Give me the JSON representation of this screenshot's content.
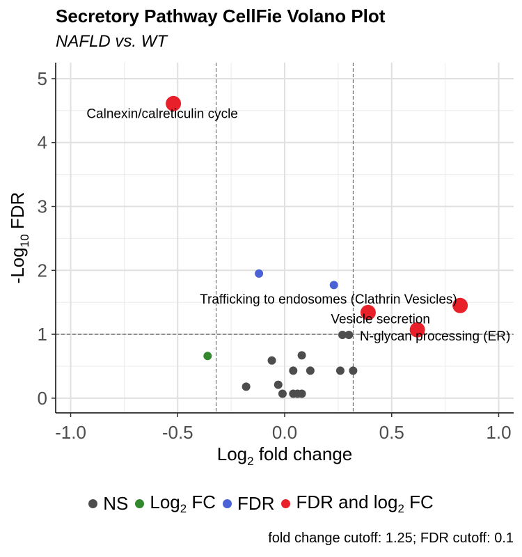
{
  "chart_data": {
    "type": "scatter",
    "title": "Secretory Pathway CellFie Volano Plot",
    "subtitle": "NAFLD vs. WT",
    "xlabel": "Log₂ fold change",
    "ylabel": "-Log₁₀ FDR",
    "xlim": [
      -1.07,
      1.07
    ],
    "ylim": [
      -0.23,
      5.25
    ],
    "x_ticks": [
      -1.0,
      -0.5,
      0.0,
      0.5,
      1.0
    ],
    "x_tick_labels": [
      "-1.0",
      "-0.5",
      "0.0",
      "0.5",
      "1.0"
    ],
    "y_ticks": [
      0,
      1,
      2,
      3,
      4,
      5
    ],
    "y_tick_labels": [
      "0",
      "1",
      "2",
      "3",
      "4",
      "5"
    ],
    "grid": true,
    "legend_position": "bottom",
    "fc_cutoff_lines": [
      -0.32,
      0.32
    ],
    "fdr_cutoff_line": 1.0,
    "caption": "fold change cutoff: 1.25; FDR cutoff: 0.1",
    "series": [
      {
        "name": "NS",
        "color": "#4d4d4d",
        "points": [
          {
            "x": -0.18,
            "y": 0.18
          },
          {
            "x": -0.06,
            "y": 0.59
          },
          {
            "x": -0.03,
            "y": 0.21
          },
          {
            "x": -0.01,
            "y": 0.07
          },
          {
            "x": 0.04,
            "y": 0.07
          },
          {
            "x": 0.06,
            "y": 0.07
          },
          {
            "x": 0.08,
            "y": 0.07
          },
          {
            "x": 0.04,
            "y": 0.43
          },
          {
            "x": 0.08,
            "y": 0.67
          },
          {
            "x": 0.12,
            "y": 0.43
          },
          {
            "x": 0.26,
            "y": 0.43
          },
          {
            "x": 0.27,
            "y": 0.99
          },
          {
            "x": 0.3,
            "y": 0.99
          },
          {
            "x": 0.32,
            "y": 0.43
          }
        ]
      },
      {
        "name": "Log₂ FC",
        "color": "#33882e",
        "points": [
          {
            "x": -0.36,
            "y": 0.66
          }
        ]
      },
      {
        "name": "FDR",
        "color": "#4a62d6",
        "points": [
          {
            "x": -0.12,
            "y": 1.95
          },
          {
            "x": 0.23,
            "y": 1.77
          }
        ]
      },
      {
        "name": "FDR and log₂ FC",
        "color": "#e8202a",
        "points": [
          {
            "x": -0.52,
            "y": 4.61,
            "label": "Calnexin/calreticulin cycle"
          },
          {
            "x": 0.39,
            "y": 1.34,
            "label": "Trafficking to endosomes (Clathrin Vesicles)"
          },
          {
            "x": 0.62,
            "y": 1.07,
            "label": "Vesicle secretion"
          },
          {
            "x": 0.82,
            "y": 1.45,
            "label": "N-glycan processing (ER)"
          }
        ]
      }
    ]
  }
}
